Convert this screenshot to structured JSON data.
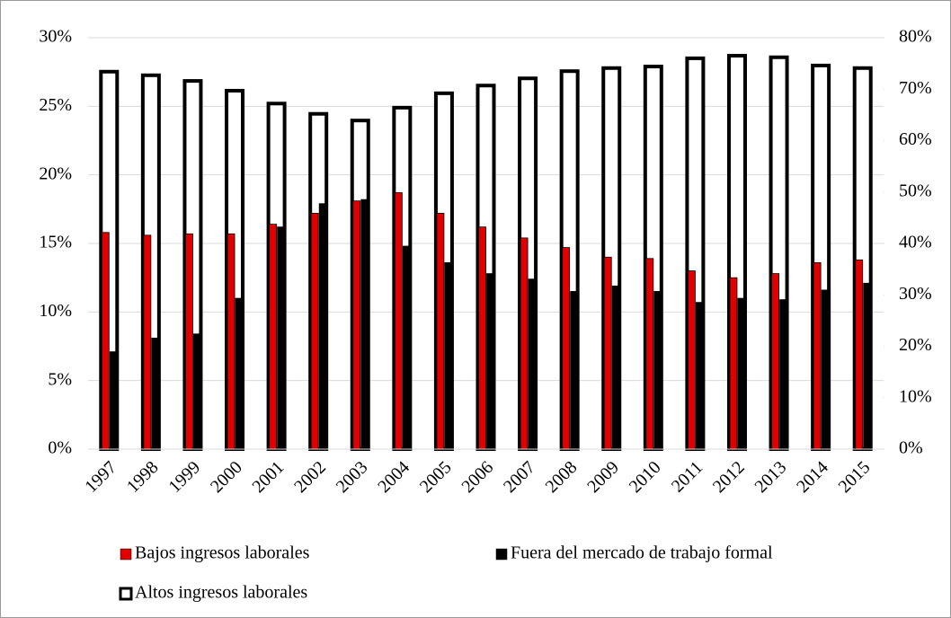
{
  "chart_data": {
    "type": "bar",
    "categories": [
      "1997",
      "1998",
      "1999",
      "2000",
      "2001",
      "2002",
      "2003",
      "2004",
      "2005",
      "2006",
      "2007",
      "2008",
      "2009",
      "2010",
      "2011",
      "2012",
      "2013",
      "2014",
      "2015"
    ],
    "series": [
      {
        "name": "Bajos ingresos laborales",
        "color": "#e00000",
        "values": [
          15.8,
          15.6,
          15.7,
          15.7,
          16.4,
          17.2,
          18.1,
          18.7,
          17.2,
          16.2,
          15.4,
          14.7,
          14.0,
          13.9,
          13.0,
          12.5,
          12.8,
          13.6,
          13.8
        ]
      },
      {
        "name": "Fuera del mercado de trabajo formal",
        "color": "#000000",
        "values": [
          7.1,
          8.1,
          8.4,
          11.0,
          16.2,
          17.9,
          18.2,
          14.8,
          13.6,
          12.8,
          12.4,
          11.5,
          11.9,
          11.5,
          10.7,
          11.0,
          10.9,
          11.6,
          12.1
        ]
      },
      {
        "name": "Altos ingresos laborales",
        "color": "#ffffff",
        "axis": "y2",
        "values": [
          73.4,
          72.7,
          71.6,
          69.7,
          67.2,
          65.2,
          63.9,
          66.4,
          69.2,
          70.7,
          72.1,
          73.5,
          74.1,
          74.4,
          76.0,
          76.5,
          76.2,
          74.6,
          74.1
        ]
      }
    ],
    "ylim": [
      0,
      30
    ],
    "yticks": [
      {
        "value": 0,
        "label": "0%"
      },
      {
        "value": 5,
        "label": "5%"
      },
      {
        "value": 10,
        "label": "10%"
      },
      {
        "value": 15,
        "label": "15%"
      },
      {
        "value": 20,
        "label": "20%"
      },
      {
        "value": 25,
        "label": "25%"
      },
      {
        "value": 30,
        "label": "30%"
      }
    ],
    "y2lim": [
      0,
      80
    ],
    "y2ticks": [
      {
        "value": 0,
        "label": "0%"
      },
      {
        "value": 10,
        "label": "10%"
      },
      {
        "value": 20,
        "label": "20%"
      },
      {
        "value": 30,
        "label": "30%"
      },
      {
        "value": 40,
        "label": "40%"
      },
      {
        "value": 50,
        "label": "50%"
      },
      {
        "value": 60,
        "label": "60%"
      },
      {
        "value": 70,
        "label": "70%"
      },
      {
        "value": 80,
        "label": "80%"
      }
    ],
    "grid": true,
    "legend": "bottom"
  }
}
